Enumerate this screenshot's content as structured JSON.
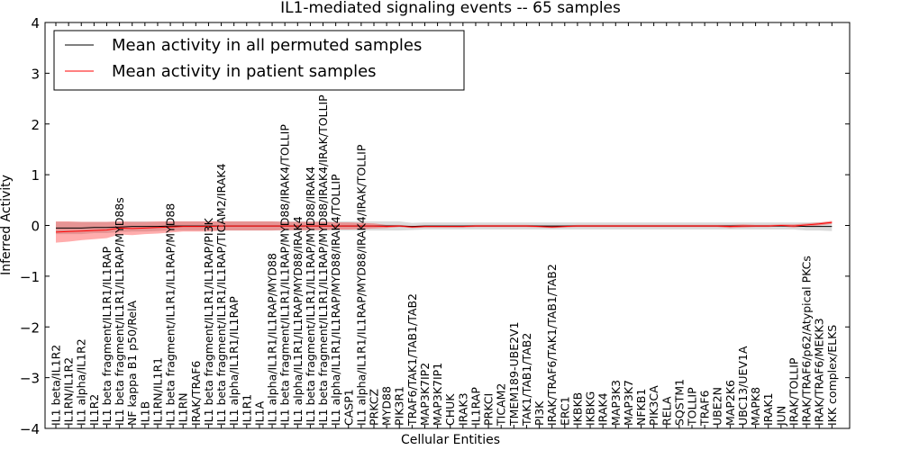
{
  "chart_data": {
    "type": "line",
    "title": "IL1-mediated signaling events -- 65 samples",
    "xlabel": "Cellular Entities",
    "ylabel": "Inferred Activity",
    "ylim": [
      -4,
      4
    ],
    "yticks": [
      "−4",
      "−3",
      "−2",
      "−1",
      "0",
      "1",
      "2",
      "3",
      "4"
    ],
    "legend_position": "upper-left",
    "categories": [
      "IL1 beta/IL1R2",
      "IL1RN/IL1R2",
      "IL1 alpha/IL1R2",
      "IL1R2",
      "IL1 beta fragment/IL1R1/IL1RAP",
      "IL1 beta fragment/IL1R1/IL1RAP/MYD88s",
      "NF kappa B1 p50/RelA",
      "IL1B",
      "IL1RN/IL1R1",
      "IL1 beta fragment/IL1R1/IL1RAP/MYD88",
      "IL1RN",
      "IRAK/TRAF6",
      "IL1 beta fragment/IL1R1/IL1RAP/PI3K",
      "IL1 beta fragment/IL1R1/IL1RAP/TICAM2/IRAK4",
      "IL1 alpha/IL1R1/IL1RAP",
      "IL1R1",
      "IL1A",
      "IL1 alpha/IL1R1/IL1RAP/MYD88",
      "IL1 beta fragment/IL1R1/IL1RAP/MYD88/IRAK4/TOLLIP",
      "IL1 alpha/IL1R1/IL1RAP/MYD88/IRAK4",
      "IL1 beta fragment/IL1R1/IL1RAP/MYD88/IRAK4",
      "IL1 beta fragment/IL1R1/IL1RAP/MYD88/IRAK4/IRAK/TOLLIP",
      "IL1 alpha/IL1R1/IL1RAP/MYD88/IRAK4/TOLLIP",
      "CASP1",
      "IL1 alpha/IL1R1/IL1RAP/MYD88/IRAK4/IRAK/TOLLIP",
      "PRKCZ",
      "MYD88",
      "PIK3R1",
      "TRAF6/TAK1/TAB1/TAB2",
      "MAP3K7IP2",
      "MAP3K7IP1",
      "CHUK",
      "IRAK3",
      "IL1RAP",
      "PRKCI",
      "TICAM2",
      "TMEM189-UBE2V1",
      "TAK1/TAB1/TAB2",
      "PI3K",
      "IRAK/TRAF6/TAK1/TAB1/TAB2",
      "ERC1",
      "IKBKB",
      "IKBKG",
      "IRAK4",
      "MAP3K3",
      "MAP3K7",
      "NFKB1",
      "PIK3CA",
      "RELA",
      "SQSTM1",
      "TOLLIP",
      "TRAF6",
      "UBE2N",
      "MAP2K6",
      "UBC13/UEV1A",
      "MAPK8",
      "IRAK1",
      "JUN",
      "IRAK/TOLLIP",
      "IRAK/TRAF6/p62/Atypical PKCs",
      "IRAK/TRAF6/MEKK3",
      "IKK complex/ELKS"
    ],
    "series": [
      {
        "name": "Mean activity in all permuted samples",
        "color": "#000000",
        "band_color": "#b0b0b0",
        "values": [
          -0.05,
          -0.05,
          -0.05,
          -0.04,
          -0.04,
          -0.03,
          -0.02,
          -0.02,
          -0.02,
          -0.01,
          -0.01,
          -0.01,
          -0.01,
          -0.01,
          -0.01,
          -0.01,
          -0.01,
          -0.01,
          -0.01,
          -0.01,
          -0.01,
          -0.01,
          -0.01,
          -0.01,
          -0.01,
          -0.01,
          -0.01,
          -0.01,
          -0.02,
          -0.01,
          -0.01,
          -0.01,
          -0.01,
          -0.01,
          -0.01,
          -0.01,
          -0.01,
          -0.01,
          -0.01,
          -0.01,
          -0.01,
          -0.01,
          -0.01,
          -0.01,
          -0.01,
          -0.01,
          -0.01,
          -0.01,
          -0.01,
          -0.01,
          -0.01,
          -0.01,
          -0.01,
          -0.01,
          -0.01,
          -0.01,
          -0.01,
          -0.01,
          -0.01,
          -0.02,
          -0.02,
          -0.02
        ],
        "spread": [
          0.12,
          0.12,
          0.12,
          0.11,
          0.11,
          0.1,
          0.1,
          0.1,
          0.09,
          0.09,
          0.09,
          0.09,
          0.09,
          0.09,
          0.09,
          0.09,
          0.09,
          0.09,
          0.09,
          0.09,
          0.09,
          0.09,
          0.09,
          0.09,
          0.09,
          0.09,
          0.09,
          0.09,
          0.07,
          0.07,
          0.07,
          0.07,
          0.07,
          0.07,
          0.07,
          0.07,
          0.07,
          0.07,
          0.07,
          0.07,
          0.07,
          0.07,
          0.07,
          0.07,
          0.07,
          0.07,
          0.07,
          0.07,
          0.07,
          0.07,
          0.07,
          0.07,
          0.07,
          0.07,
          0.07,
          0.07,
          0.07,
          0.07,
          0.07,
          0.08,
          0.08,
          0.09
        ]
      },
      {
        "name": "Mean activity in patient samples",
        "color": "#ff0000",
        "band_color": "#ff0000",
        "values": [
          -0.13,
          -0.12,
          -0.11,
          -0.1,
          -0.09,
          -0.05,
          -0.06,
          -0.05,
          -0.04,
          -0.03,
          -0.02,
          -0.02,
          -0.02,
          -0.01,
          -0.01,
          -0.01,
          -0.01,
          -0.01,
          -0.01,
          -0.01,
          -0.01,
          -0.01,
          -0.01,
          -0.01,
          -0.01,
          -0.01,
          -0.02,
          -0.01,
          -0.03,
          -0.02,
          -0.02,
          -0.02,
          -0.02,
          -0.01,
          -0.01,
          -0.01,
          -0.01,
          -0.01,
          -0.02,
          -0.03,
          -0.02,
          -0.01,
          -0.01,
          -0.01,
          -0.01,
          -0.01,
          -0.01,
          -0.01,
          -0.01,
          -0.01,
          -0.01,
          -0.01,
          -0.01,
          -0.02,
          -0.01,
          -0.01,
          -0.01,
          0.0,
          -0.01,
          0.01,
          0.03,
          0.06
        ],
        "spread": [
          0.21,
          0.2,
          0.18,
          0.17,
          0.16,
          0.13,
          0.13,
          0.12,
          0.12,
          0.11,
          0.1,
          0.1,
          0.1,
          0.09,
          0.09,
          0.09,
          0.09,
          0.09,
          0.08,
          0.08,
          0.08,
          0.08,
          0.07,
          0.07,
          0.06,
          0.05,
          0.03,
          0.02,
          0.02,
          0.02,
          0.02,
          0.02,
          0.02,
          0.02,
          0.02,
          0.02,
          0.02,
          0.02,
          0.02,
          0.02,
          0.02,
          0.02,
          0.02,
          0.02,
          0.02,
          0.02,
          0.02,
          0.02,
          0.02,
          0.02,
          0.02,
          0.02,
          0.02,
          0.03,
          0.03,
          0.02,
          0.02,
          0.02,
          0.03,
          0.03,
          0.03,
          0.03
        ]
      }
    ]
  }
}
